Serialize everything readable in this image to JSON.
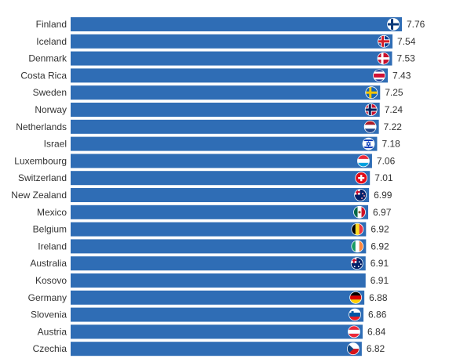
{
  "chart_data": {
    "type": "bar",
    "orientation": "horizontal",
    "title": "",
    "xlabel": "",
    "ylabel": "",
    "grid": false,
    "bar_color": "#2f6db5",
    "categories": [
      "Finland",
      "Iceland",
      "Denmark",
      "Costa Rica",
      "Sweden",
      "Norway",
      "Netherlands",
      "Israel",
      "Luxembourg",
      "Switzerland",
      "New Zealand",
      "Mexico",
      "Belgium",
      "Ireland",
      "Australia",
      "Kosovo",
      "Germany",
      "Slovenia",
      "Austria",
      "Czechia"
    ],
    "values": [
      7.76,
      7.54,
      7.53,
      7.43,
      7.25,
      7.24,
      7.22,
      7.18,
      7.06,
      7.01,
      6.99,
      6.97,
      6.92,
      6.92,
      6.91,
      6.91,
      6.88,
      6.86,
      6.84,
      6.82
    ],
    "value_labels": [
      "7.76",
      "7.54",
      "7.53",
      "7.43",
      "7.25",
      "7.24",
      "7.22",
      "7.18",
      "7.06",
      "7.01",
      "6.99",
      "6.97",
      "6.92",
      "6.92",
      "6.91",
      "6.91",
      "6.88",
      "6.86",
      "6.84",
      "6.82"
    ],
    "flag_icons": [
      "finland-flag-icon",
      "iceland-flag-icon",
      "denmark-flag-icon",
      "costa-rica-flag-icon",
      "sweden-flag-icon",
      "norway-flag-icon",
      "netherlands-flag-icon",
      "israel-flag-icon",
      "luxembourg-flag-icon",
      "switzerland-flag-icon",
      "new-zealand-flag-icon",
      "mexico-flag-icon",
      "belgium-flag-icon",
      "ireland-flag-icon",
      "australia-flag-icon",
      "",
      "germany-flag-icon",
      "slovenia-flag-icon",
      "austria-flag-icon",
      "czechia-flag-icon"
    ]
  }
}
